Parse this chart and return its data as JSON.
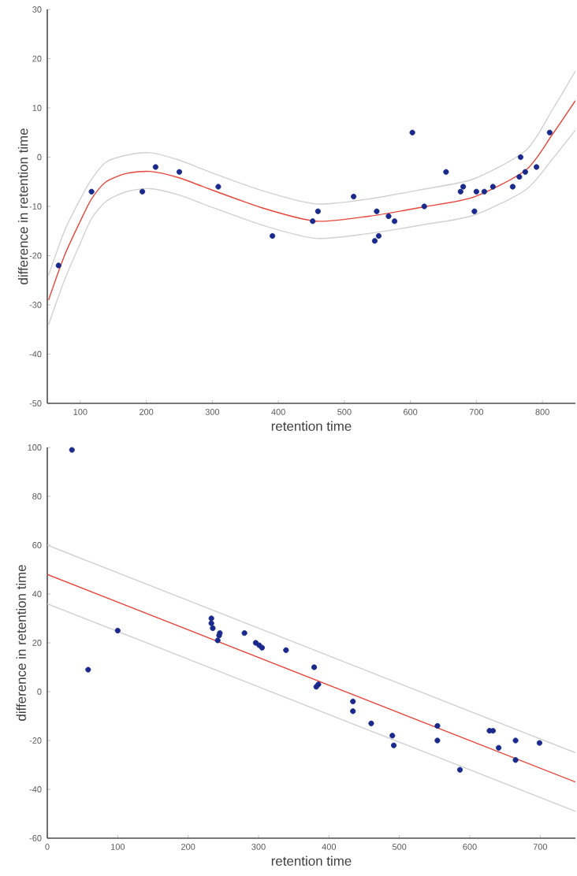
{
  "chart_data": [
    {
      "type": "scatter",
      "xlabel": "retention time",
      "ylabel": "difference in retention time",
      "xlim": [
        50,
        850
      ],
      "ylim": [
        -50,
        30
      ],
      "xticks": [
        100,
        200,
        300,
        400,
        500,
        600,
        700,
        800
      ],
      "yticks": [
        -50,
        -40,
        -30,
        -20,
        -10,
        0,
        10,
        20,
        30
      ],
      "grid": false,
      "series": [
        {
          "color": "#1a2a8c",
          "marker": "circle",
          "x": [
            67,
            117,
            194,
            214,
            250,
            309,
            391,
            452,
            460,
            514,
            546,
            549,
            552,
            567,
            576,
            603,
            621,
            654,
            676,
            680,
            697,
            700,
            712,
            725,
            755,
            765,
            767,
            774,
            791,
            811
          ],
          "values": [
            -22,
            -7,
            -7,
            -2,
            -3,
            -6,
            -16,
            -13,
            -11,
            -8,
            -17,
            -11,
            -16,
            -12,
            -13,
            5,
            -10,
            -3,
            -7,
            -6,
            -11,
            -7,
            -7,
            -6,
            -6,
            -4,
            0,
            -3,
            -2,
            5
          ]
        },
        {
          "type": "line",
          "color": "#d1d1d1",
          "marker": "none",
          "x": [
            52,
            76,
            100,
            117,
            139,
            170,
            206,
            250,
            298,
            378,
            457,
            537,
            616,
            696,
            775,
            815,
            850
          ],
          "values": [
            -24,
            -15,
            -8.5,
            -4.5,
            -1,
            0.4,
            0.9,
            -0.6,
            -3.1,
            -6.9,
            -9.5,
            -8.5,
            -6.6,
            -4.4,
            1.4,
            9.6,
            17.5
          ]
        },
        {
          "type": "line",
          "color": "#d1d1d1",
          "marker": "none",
          "x": [
            52,
            76,
            100,
            117,
            139,
            170,
            206,
            250,
            298,
            378,
            457,
            537,
            616,
            696,
            775,
            815,
            850
          ],
          "values": [
            -34,
            -25,
            -17.5,
            -12.5,
            -9,
            -7,
            -6.4,
            -7.7,
            -10.1,
            -13.9,
            -16.5,
            -15.5,
            -13.8,
            -11.8,
            -6.6,
            -0.4,
            5.5
          ]
        },
        {
          "type": "line",
          "color": "#e8463a",
          "marker": "none",
          "line_style": "solid",
          "x": [
            52,
            76,
            100,
            117,
            139,
            170,
            206,
            250,
            298,
            378,
            457,
            537,
            616,
            696,
            775,
            815,
            850
          ],
          "values": [
            -29,
            -20,
            -13,
            -8.5,
            -5,
            -3.3,
            -2.9,
            -4.2,
            -6.6,
            -10.4,
            -13,
            -12,
            -10.2,
            -8.1,
            -2.6,
            4.6,
            11.5
          ]
        }
      ]
    },
    {
      "type": "scatter",
      "xlabel": "retention time",
      "ylabel": "difference in retention time",
      "xlim": [
        0,
        750
      ],
      "ylim": [
        -60,
        100
      ],
      "xticks": [
        0,
        100,
        200,
        300,
        400,
        500,
        600,
        700
      ],
      "yticks": [
        -60,
        -40,
        -20,
        0,
        20,
        40,
        60,
        80,
        100
      ],
      "grid": false,
      "series": [
        {
          "color": "#1a2a8c",
          "marker": "circle",
          "x": [
            35,
            58,
            100,
            233,
            233,
            235,
            242,
            244,
            245,
            280,
            296,
            301,
            305,
            339,
            379,
            382,
            385,
            434,
            434,
            460,
            490,
            492,
            554,
            554,
            586,
            628,
            633,
            641,
            665,
            665,
            699
          ],
          "values": [
            99,
            9,
            25,
            30,
            28,
            26,
            21,
            23,
            24,
            24,
            20,
            19,
            18,
            17,
            10,
            2,
            3,
            -4,
            -8,
            -13,
            -18,
            -22,
            -14,
            -20,
            -32,
            -16,
            -16,
            -23,
            -20,
            -28,
            -21
          ]
        },
        {
          "type": "line",
          "color": "#d1d1d1",
          "marker": "none",
          "x": [
            0,
            750
          ],
          "values": [
            60,
            -25
          ]
        },
        {
          "type": "line",
          "color": "#d1d1d1",
          "marker": "none",
          "x": [
            0,
            750
          ],
          "values": [
            36,
            -49
          ]
        },
        {
          "type": "line",
          "color": "#e8463a",
          "marker": "none",
          "line_style": "solid",
          "x": [
            0,
            750
          ],
          "values": [
            48,
            -37
          ]
        }
      ]
    }
  ]
}
